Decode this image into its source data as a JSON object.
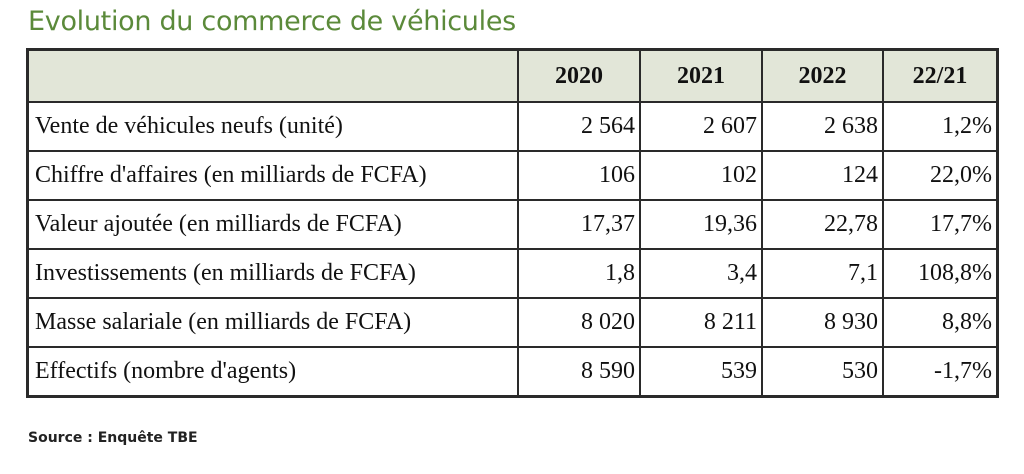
{
  "title": "Evolution du commerce de véhicules",
  "table": {
    "headers": [
      "",
      "2020",
      "2021",
      "2022",
      "22/21"
    ],
    "rows": [
      [
        "Vente de véhicules neufs (unité)",
        "2 564",
        "2 607",
        "2 638",
        "1,2%"
      ],
      [
        "Chiffre d'affaires (en milliards de FCFA)",
        "106",
        "102",
        "124",
        "22,0%"
      ],
      [
        "Valeur ajoutée (en milliards de FCFA)",
        "17,37",
        "19,36",
        "22,78",
        "17,7%"
      ],
      [
        "Investissements (en milliards de FCFA)",
        "1,8",
        "3,4",
        "7,1",
        "108,8%"
      ],
      [
        "Masse salariale (en milliards de FCFA)",
        "8 020",
        "8 211",
        "8 930",
        "8,8%"
      ],
      [
        "Effectifs (nombre d'agents)",
        "8 590",
        "539",
        "530",
        "-1,7%"
      ]
    ]
  },
  "source": "Source : Enquête TBE",
  "colors": {
    "title": "#5b8a3a",
    "header_bg": "#e2e6d8"
  }
}
